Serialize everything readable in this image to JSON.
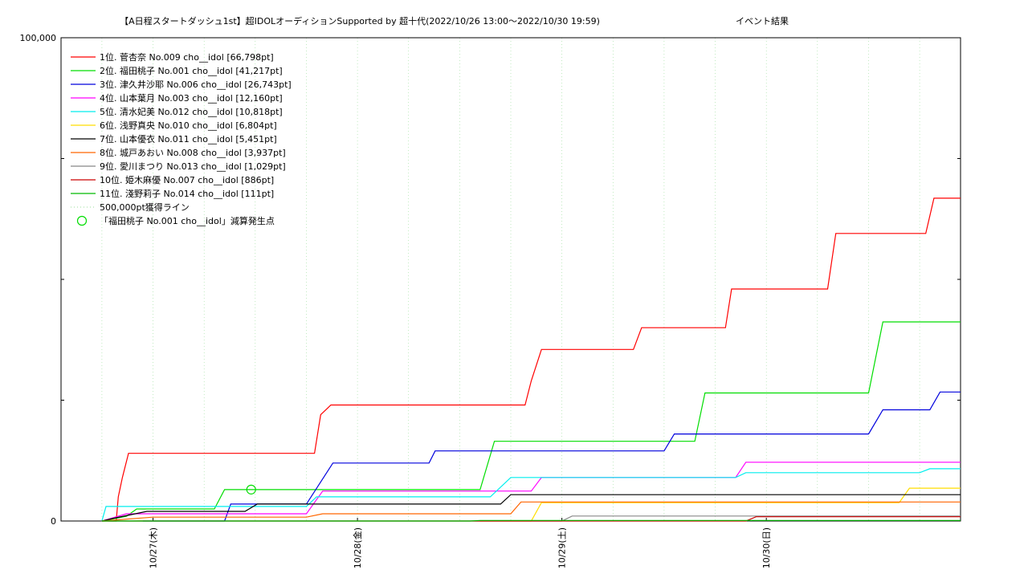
{
  "chart_data": {
    "type": "line",
    "title": "【A日程スタートダッシュ1st】超IDOLオーディションSupported by 超十代(2022/10/26 13:00～2022/10/30 19:59)",
    "subtitle": "イベント結果",
    "y_tick_labels": [
      "0",
      "100,000"
    ],
    "ylim": [
      0,
      100000
    ],
    "xlim": [
      0,
      4.4
    ],
    "x_tick_labels": [
      {
        "label": "10/27(木)",
        "x": 0.45
      },
      {
        "label": "10/28(金)",
        "x": 1.45
      },
      {
        "label": "10/29(土)",
        "x": 2.45
      },
      {
        "label": "10/30(日)",
        "x": 3.45
      }
    ],
    "grid": true,
    "legend_position": "top-left",
    "series": [
      {
        "name": "1位. 菅杏奈 No.009 cho__idol [66,798pt]",
        "color": "#ff0000",
        "points": [
          [
            0.2,
            0
          ],
          [
            0.27,
            0
          ],
          [
            0.28,
            5000
          ],
          [
            0.3,
            9000
          ],
          [
            0.33,
            14000
          ],
          [
            0.7,
            14000
          ],
          [
            1.24,
            14000
          ],
          [
            1.27,
            22000
          ],
          [
            1.32,
            24000
          ],
          [
            2.27,
            24000
          ],
          [
            2.3,
            29000
          ],
          [
            2.35,
            35500
          ],
          [
            2.8,
            35500
          ],
          [
            2.84,
            40000
          ],
          [
            3.25,
            40000
          ],
          [
            3.28,
            48000
          ],
          [
            3.75,
            48000
          ],
          [
            3.79,
            59500
          ],
          [
            4.23,
            59500
          ],
          [
            4.27,
            66800
          ],
          [
            4.4,
            66800
          ]
        ]
      },
      {
        "name": "2位. 福田桃子 No.001 cho__idol [41,217pt]",
        "color": "#00dd00",
        "points": [
          [
            0.2,
            0
          ],
          [
            0.32,
            1000
          ],
          [
            0.37,
            2500
          ],
          [
            0.75,
            2500
          ],
          [
            0.8,
            6500
          ],
          [
            1.25,
            6500
          ],
          [
            2.05,
            6500
          ],
          [
            2.12,
            16500
          ],
          [
            3.1,
            16500
          ],
          [
            3.15,
            26500
          ],
          [
            3.95,
            26500
          ],
          [
            4.02,
            41200
          ],
          [
            4.4,
            41200
          ]
        ]
      },
      {
        "name": "3位. 津久井沙耶 No.006 cho__idol [26,743pt]",
        "color": "#0000dd",
        "points": [
          [
            0.4,
            0
          ],
          [
            0.8,
            0
          ],
          [
            0.83,
            3500
          ],
          [
            1.2,
            3500
          ],
          [
            1.33,
            12000
          ],
          [
            1.8,
            12000
          ],
          [
            1.83,
            14500
          ],
          [
            2.95,
            14500
          ],
          [
            3.0,
            18000
          ],
          [
            3.95,
            18000
          ],
          [
            4.02,
            23000
          ],
          [
            4.25,
            23000
          ],
          [
            4.3,
            26700
          ],
          [
            4.4,
            26700
          ]
        ]
      },
      {
        "name": "4位. 山本葉月 No.003 cho__idol [12,160pt]",
        "color": "#ff00ff",
        "points": [
          [
            0.2,
            0
          ],
          [
            0.32,
            1500
          ],
          [
            1.2,
            1500
          ],
          [
            1.28,
            6200
          ],
          [
            2.3,
            6200
          ],
          [
            2.35,
            9000
          ],
          [
            3.3,
            9000
          ],
          [
            3.35,
            12160
          ],
          [
            4.4,
            12160
          ]
        ]
      },
      {
        "name": "5位. 清水妃美 No.012 cho__idol [10,818pt]",
        "color": "#00eeee",
        "points": [
          [
            0.2,
            0
          ],
          [
            0.22,
            3000
          ],
          [
            0.75,
            3000
          ],
          [
            1.2,
            3000
          ],
          [
            1.25,
            5000
          ],
          [
            2.1,
            5000
          ],
          [
            2.2,
            9000
          ],
          [
            3.3,
            9000
          ],
          [
            3.35,
            10000
          ],
          [
            4.2,
            10000
          ],
          [
            4.25,
            10818
          ],
          [
            4.4,
            10818
          ]
        ]
      },
      {
        "name": "6位. 浅野真央 No.010 cho__idol [6,804pt]",
        "color": "#ffdd00",
        "points": [
          [
            2.05,
            0
          ],
          [
            2.3,
            0
          ],
          [
            2.35,
            3800
          ],
          [
            4.1,
            3800
          ],
          [
            4.15,
            6800
          ],
          [
            4.4,
            6800
          ]
        ]
      },
      {
        "name": "7位. 山本優衣 No.011 cho__idol [5,451pt]",
        "color": "#000000",
        "points": [
          [
            0.2,
            0
          ],
          [
            0.25,
            500
          ],
          [
            0.42,
            2000
          ],
          [
            0.9,
            2000
          ],
          [
            0.96,
            3500
          ],
          [
            2.15,
            3500
          ],
          [
            2.2,
            5451
          ],
          [
            4.4,
            5451
          ]
        ]
      },
      {
        "name": "8位. 城戸あおい No.008 cho__idol [3,937pt]",
        "color": "#ff6600",
        "points": [
          [
            0.2,
            0
          ],
          [
            0.45,
            800
          ],
          [
            1.2,
            800
          ],
          [
            1.28,
            1500
          ],
          [
            2.2,
            1500
          ],
          [
            2.25,
            3937
          ],
          [
            4.4,
            3937
          ]
        ]
      },
      {
        "name": "9位. 愛川まつり No.013 cho__idol [1,029pt]",
        "color": "#888888",
        "points": [
          [
            0.2,
            0
          ],
          [
            2.45,
            0
          ],
          [
            2.5,
            1029
          ],
          [
            4.4,
            1029
          ]
        ]
      },
      {
        "name": "10位. 姫木麻優 No.007 cho__idol [886pt]",
        "color": "#cc0000",
        "points": [
          [
            0.2,
            0
          ],
          [
            3.35,
            0
          ],
          [
            3.4,
            886
          ],
          [
            4.4,
            886
          ]
        ]
      },
      {
        "name": "11位. 淺野莉子 No.014 cho__idol [111pt]",
        "color": "#00bb00",
        "points": [
          [
            0.2,
            0
          ],
          [
            2.0,
            0
          ],
          [
            2.05,
            111
          ],
          [
            4.4,
            111
          ]
        ]
      }
    ],
    "reference_line": {
      "name": "500,000pt獲得ライン",
      "color": "#99dd99"
    },
    "markers": [
      {
        "name": "「福田桃子 No.001 cho__idol」減算発生点",
        "color": "#00dd00",
        "x": 0.93,
        "y": 6500
      }
    ]
  }
}
